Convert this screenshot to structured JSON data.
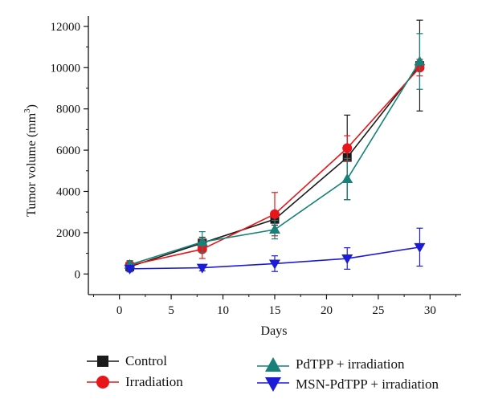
{
  "chart_data": {
    "type": "line",
    "xlabel": "Days",
    "ylabel": "Tumor volume (mm",
    "ylabel_sup": "3",
    "ylabel_close": ")",
    "xlim": [
      -3,
      33
    ],
    "ylim": [
      -1000,
      12500
    ],
    "x_ticks": [
      0,
      5,
      10,
      15,
      20,
      25,
      30
    ],
    "x_tick_labels": [
      "0",
      "5",
      "10",
      "15",
      "20",
      "25",
      "30"
    ],
    "y_ticks": [
      0,
      2000,
      4000,
      6000,
      8000,
      10000,
      12000
    ],
    "y_tick_labels": [
      "0",
      "2000",
      "4000",
      "6000",
      "8000",
      "10000",
      "12000"
    ],
    "x": [
      1,
      8,
      15,
      22,
      29
    ],
    "series": [
      {
        "name": "Control",
        "marker": "square",
        "color": "#1a1a1a",
        "values": [
          350,
          1500,
          2650,
          5650,
          10100
        ],
        "errors": [
          180,
          280,
          280,
          2050,
          2200
        ]
      },
      {
        "name": "Irradiation",
        "marker": "circle",
        "color": "#e8161b",
        "values": [
          420,
          1200,
          2900,
          6100,
          10000
        ],
        "errors": [
          200,
          450,
          1050,
          600,
          400
        ]
      },
      {
        "name": "PdTPP + irradiation",
        "marker": "triangle-up",
        "color": "#178078",
        "values": [
          450,
          1550,
          2150,
          4600,
          10300
        ],
        "errors": [
          200,
          500,
          450,
          1000,
          1350
        ]
      },
      {
        "name": "MSN-PdTPP + irradiation",
        "marker": "triangle-down",
        "color": "#1c1cd6",
        "values": [
          250,
          300,
          500,
          750,
          1300
        ],
        "errors": [
          150,
          150,
          380,
          520,
          920
        ]
      }
    ]
  }
}
